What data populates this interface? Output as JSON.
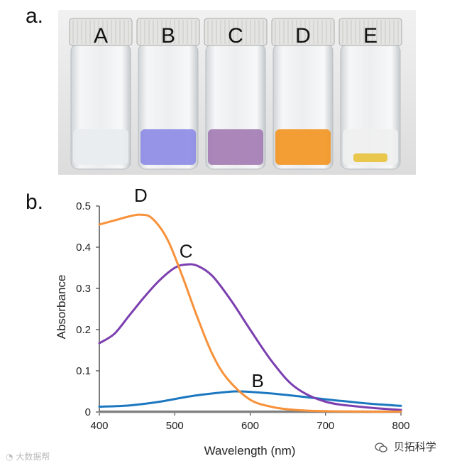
{
  "panels": {
    "a": "a.",
    "b": "b."
  },
  "vials": [
    {
      "label": "A",
      "liquid": "#e8ecef"
    },
    {
      "label": "B",
      "liquid": "#8c89e6"
    },
    {
      "label": "C",
      "liquid": "#a27ab2"
    },
    {
      "label": "D",
      "liquid": "#f39420"
    },
    {
      "label": "E",
      "liquid": "#eef0ee"
    }
  ],
  "chart_data": {
    "type": "line",
    "title": "",
    "xlabel": "Wavelength (nm)",
    "ylabel": "Absorbance",
    "xlim": [
      400,
      800
    ],
    "ylim": [
      0,
      0.5
    ],
    "xticks": [
      "400",
      "500",
      "600",
      "700",
      "800"
    ],
    "yticks": [
      "0",
      "0.1",
      "0.2",
      "0.3",
      "0.4",
      "0.5"
    ],
    "grid": false,
    "series": [
      {
        "name": "D",
        "color": "#f7913a",
        "x": [
          400,
          420,
          440,
          455,
          470,
          490,
          510,
          530,
          550,
          570,
          600,
          630,
          660,
          700,
          750,
          800
        ],
        "y": [
          0.455,
          0.465,
          0.475,
          0.479,
          0.47,
          0.42,
          0.33,
          0.23,
          0.14,
          0.08,
          0.03,
          0.012,
          0.005,
          0.002,
          0.001,
          0.001
        ]
      },
      {
        "name": "C",
        "color": "#7b3fb0",
        "x": [
          400,
          420,
          440,
          460,
          480,
          500,
          515,
          530,
          550,
          575,
          600,
          630,
          660,
          700,
          750,
          800
        ],
        "y": [
          0.167,
          0.19,
          0.235,
          0.28,
          0.32,
          0.35,
          0.358,
          0.355,
          0.33,
          0.27,
          0.2,
          0.12,
          0.06,
          0.025,
          0.012,
          0.005
        ]
      },
      {
        "name": "B",
        "color": "#1b78c0",
        "x": [
          400,
          440,
          480,
          520,
          560,
          580,
          600,
          640,
          680,
          720,
          760,
          800
        ],
        "y": [
          0.013,
          0.016,
          0.025,
          0.038,
          0.047,
          0.05,
          0.049,
          0.043,
          0.035,
          0.027,
          0.02,
          0.015
        ]
      },
      {
        "name": "A",
        "color": "#7f7f7f",
        "x": [
          400,
          500,
          600,
          700,
          800
        ],
        "y": [
          0.001,
          0.001,
          0.001,
          0.001,
          0.001
        ]
      },
      {
        "name": "E",
        "color": "#b0b0b0",
        "x": [
          400,
          500,
          600,
          700,
          800
        ],
        "y": [
          0.0,
          0.0,
          0.0,
          0.0,
          0.0
        ]
      }
    ],
    "annotations": [
      {
        "text": "D",
        "x": 455,
        "y": 0.51
      },
      {
        "text": "C",
        "x": 515,
        "y": 0.375
      },
      {
        "text": "B",
        "x": 610,
        "y": 0.06
      }
    ]
  },
  "watermarks": {
    "left": "大数据帮",
    "right": "贝拓科学"
  }
}
